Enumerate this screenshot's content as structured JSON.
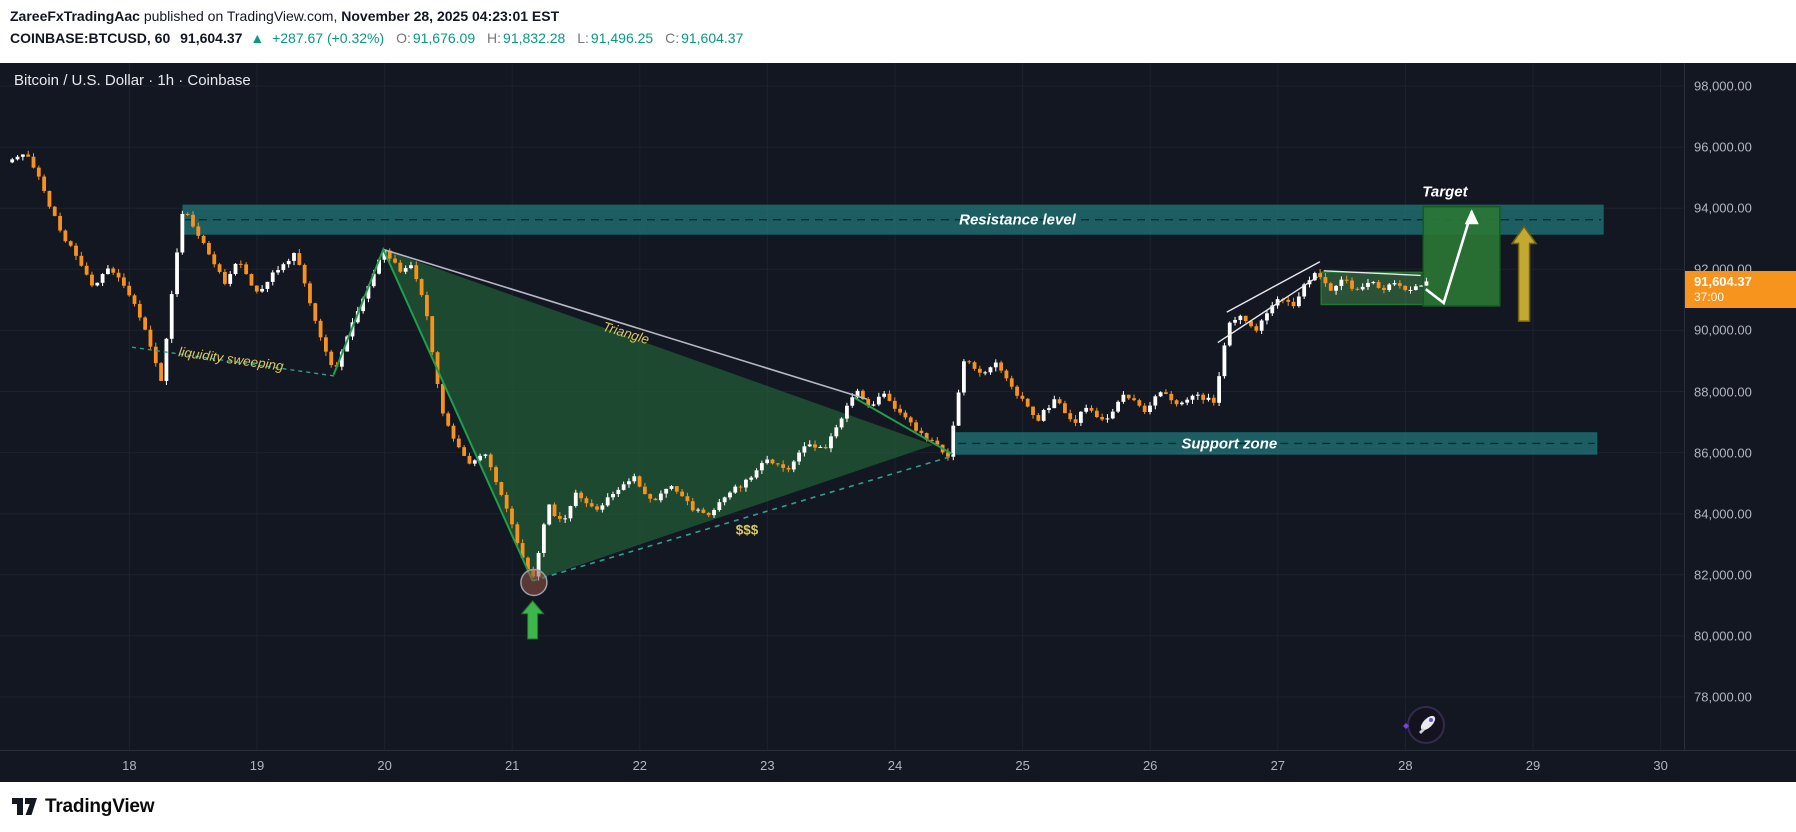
{
  "attribution": {
    "author": "ZareeFxTradingAac",
    "middle": " published on TradingView.com, ",
    "date": "November 28, 2025 04:23:01 EST"
  },
  "symbol_line": {
    "symbol": "COINBASE:BTCUSD, 60",
    "last": "91,604.37",
    "change_arrow": "▲",
    "change": "+287.67 (+0.32%)",
    "o_label": "O:",
    "o": "91,676.09",
    "h_label": "H:",
    "h": "91,832.28",
    "l_label": "L:",
    "l": "91,496.25",
    "c_label": "C:",
    "c": "91,604.37"
  },
  "chart": {
    "title": "Bitcoin / U.S. Dollar · 1h · Coinbase",
    "price_tag": {
      "value": "91,604.37",
      "countdown": "37:00",
      "bg": "#f7941e"
    }
  },
  "labels": {
    "resistance": "Resistance level",
    "support": "Support zone",
    "triangle": "Triangle",
    "money": "$$$",
    "liquidity": "liquidity sweeping",
    "target": "Target"
  },
  "footer": {
    "brand": "TradingView"
  },
  "chart_data": {
    "type": "candlestick",
    "symbol": "COINBASE:BTCUSD",
    "interval": "1h",
    "last_close": 91604.37,
    "x_ticks": [
      {
        "label": "18",
        "day": 18
      },
      {
        "label": "19",
        "day": 19
      },
      {
        "label": "20",
        "day": 20
      },
      {
        "label": "21",
        "day": 21
      },
      {
        "label": "22",
        "day": 22
      },
      {
        "label": "23",
        "day": 23
      },
      {
        "label": "24",
        "day": 24
      },
      {
        "label": "25",
        "day": 25
      },
      {
        "label": "26",
        "day": 26
      },
      {
        "label": "27",
        "day": 27
      },
      {
        "label": "28",
        "day": 28
      },
      {
        "label": "29",
        "day": 29
      },
      {
        "label": "30",
        "day": 30
      }
    ],
    "y_ticks": [
      {
        "label": "98,000.00",
        "value": 98000
      },
      {
        "label": "96,000.00",
        "value": 96000
      },
      {
        "label": "94,000.00",
        "value": 94000
      },
      {
        "label": "92,000.00",
        "value": 92000
      },
      {
        "label": "90,000.00",
        "value": 90000
      },
      {
        "label": "88,000.00",
        "value": 88000
      },
      {
        "label": "86,000.00",
        "value": 86000
      },
      {
        "label": "84,000.00",
        "value": 84000
      },
      {
        "label": "82,000.00",
        "value": 82000
      },
      {
        "label": "80,000.00",
        "value": 80000
      },
      {
        "label": "78,000.00",
        "value": 78000
      }
    ],
    "colors": {
      "up": "#ffffff",
      "down": "#f7921e",
      "bg": "#131722",
      "grid": "#1e222d",
      "axis_text": "#b2b5be",
      "zone_fill": "rgba(32,112,116,0.8)",
      "zone_edge": "#17666b",
      "zone_dash": "#05272b",
      "triangle_fill": "rgba(34,86,54,0.8)",
      "triangle_top": "#b6b9c4",
      "teal_dash": "#2f9e8f",
      "green_line": "#1f9e4e",
      "white_line": "#e8e8ea",
      "box1_fill": "rgba(74,155,80,0.45)",
      "box1_edge": "#1f7a2f",
      "box2_fill": "rgba(43,120,52,0.9)",
      "box2_edge": "#155c22",
      "yellow": "#c3a832",
      "yellow_edge": "#6f610f",
      "green_arrow": "#3cb54a",
      "green_arrow_edge": "#22702c",
      "marker_fill": "rgba(150,85,70,0.55)",
      "marker_edge": "#9aa0a6"
    },
    "price_path": [
      [
        17.04,
        95500
      ],
      [
        17.2,
        95800
      ],
      [
        17.3,
        94900
      ],
      [
        17.45,
        93300
      ],
      [
        17.6,
        92300
      ],
      [
        17.72,
        91400
      ],
      [
        17.85,
        92100
      ],
      [
        17.98,
        91300
      ],
      [
        18.1,
        90300
      ],
      [
        18.25,
        88400
      ],
      [
        18.42,
        94050
      ],
      [
        18.5,
        93400
      ],
      [
        18.62,
        92500
      ],
      [
        18.75,
        91500
      ],
      [
        18.85,
        92300
      ],
      [
        19.0,
        91200
      ],
      [
        19.15,
        92000
      ],
      [
        19.3,
        92550
      ],
      [
        19.45,
        90400
      ],
      [
        19.6,
        88600
      ],
      [
        19.75,
        90300
      ],
      [
        19.9,
        91700
      ],
      [
        20.0,
        92680
      ],
      [
        20.12,
        91900
      ],
      [
        20.2,
        92200
      ],
      [
        20.32,
        90700
      ],
      [
        20.45,
        87300
      ],
      [
        20.55,
        86400
      ],
      [
        20.65,
        85600
      ],
      [
        20.78,
        86000
      ],
      [
        20.95,
        84200
      ],
      [
        21.05,
        82900
      ],
      [
        21.16,
        81800
      ],
      [
        21.28,
        84300
      ],
      [
        21.4,
        83600
      ],
      [
        21.5,
        84700
      ],
      [
        21.65,
        84100
      ],
      [
        21.8,
        84700
      ],
      [
        21.95,
        85200
      ],
      [
        22.1,
        84400
      ],
      [
        22.25,
        84900
      ],
      [
        22.4,
        84200
      ],
      [
        22.55,
        83900
      ],
      [
        22.7,
        84700
      ],
      [
        22.85,
        85100
      ],
      [
        23.0,
        85800
      ],
      [
        23.15,
        85400
      ],
      [
        23.3,
        86300
      ],
      [
        23.45,
        86050
      ],
      [
        23.6,
        87300
      ],
      [
        23.7,
        88150
      ],
      [
        23.8,
        87450
      ],
      [
        23.9,
        87950
      ],
      [
        24.05,
        87200
      ],
      [
        24.2,
        86600
      ],
      [
        24.42,
        85900
      ],
      [
        24.55,
        89200
      ],
      [
        24.65,
        88500
      ],
      [
        24.8,
        88950
      ],
      [
        24.9,
        88200
      ],
      [
        25.0,
        87700
      ],
      [
        25.12,
        87100
      ],
      [
        25.25,
        87750
      ],
      [
        25.4,
        86950
      ],
      [
        25.5,
        87500
      ],
      [
        25.65,
        87000
      ],
      [
        25.8,
        87950
      ],
      [
        25.95,
        87300
      ],
      [
        26.1,
        88100
      ],
      [
        26.2,
        87500
      ],
      [
        26.35,
        87850
      ],
      [
        26.5,
        87700
      ],
      [
        26.62,
        90250
      ],
      [
        26.72,
        90450
      ],
      [
        26.82,
        89950
      ],
      [
        26.92,
        90650
      ],
      [
        27.02,
        91150
      ],
      [
        27.12,
        90750
      ],
      [
        27.22,
        91550
      ],
      [
        27.3,
        91900
      ],
      [
        27.42,
        91350
      ],
      [
        27.52,
        91650
      ],
      [
        27.62,
        91300
      ],
      [
        27.72,
        91600
      ],
      [
        27.82,
        91280
      ],
      [
        27.92,
        91550
      ],
      [
        28.02,
        91230
      ],
      [
        28.1,
        91480
      ],
      [
        28.18,
        91604.37
      ]
    ],
    "zones": [
      {
        "key": "resistance",
        "t1": 18.42,
        "t2": 29.55,
        "p1": 93150,
        "p2": 94100
      },
      {
        "key": "support",
        "t1": 24.48,
        "t2": 29.5,
        "p1": 85950,
        "p2": 86650
      }
    ],
    "triangle": {
      "fill": [
        [
          19.99,
          92650
        ],
        [
          21.16,
          81800
        ],
        [
          24.3,
          86250
        ]
      ],
      "top_line": [
        [
          19.99,
          92650
        ],
        [
          23.78,
          87750
        ]
      ],
      "bottom_dashed": [
        [
          21.16,
          81800
        ],
        [
          24.46,
          85900
        ]
      ]
    },
    "liquidity_line": [
      [
        18.02,
        89450
      ],
      [
        19.62,
        88500
      ]
    ],
    "green_lines": [
      [
        [
          19.6,
          88550
        ],
        [
          19.99,
          92650
        ],
        [
          21.16,
          81800
        ]
      ],
      [
        [
          23.68,
          87800
        ],
        [
          24.45,
          85950
        ]
      ]
    ],
    "white_lines": [
      [
        [
          26.53,
          89600
        ],
        [
          27.31,
          91750
        ]
      ],
      [
        [
          26.6,
          90600
        ],
        [
          27.33,
          92250
        ]
      ],
      [
        [
          27.36,
          91950
        ],
        [
          28.12,
          91800
        ]
      ]
    ],
    "boxes": [
      {
        "t1": 27.34,
        "t2": 28.14,
        "p1": 90850,
        "p2": 91900
      },
      {
        "t1": 28.14,
        "t2": 28.74,
        "p1": 90800,
        "p2": 94050
      }
    ],
    "target_arrow": [
      [
        28.16,
        91350
      ],
      [
        28.3,
        90900
      ],
      [
        28.52,
        93900
      ]
    ],
    "yellow_arrow": {
      "t": 28.93,
      "p1": 90300,
      "p2": 93400
    },
    "green_arrow": {
      "t": 21.16,
      "p1": 79900,
      "p2": 81150
    },
    "marker": {
      "t": 21.17,
      "p": 81750,
      "r": 13
    },
    "label_anchors": {
      "resistance": {
        "t": 24.96,
        "p": 93620
      },
      "support": {
        "t": 26.62,
        "p": 86290
      },
      "triangle": {
        "t": 21.89,
        "p": 89900
      },
      "money": {
        "t": 22.84,
        "p": 83480
      },
      "liquidity": {
        "t": 18.8,
        "p": 89050
      },
      "target": {
        "t": 28.31,
        "p": 94540
      }
    }
  }
}
